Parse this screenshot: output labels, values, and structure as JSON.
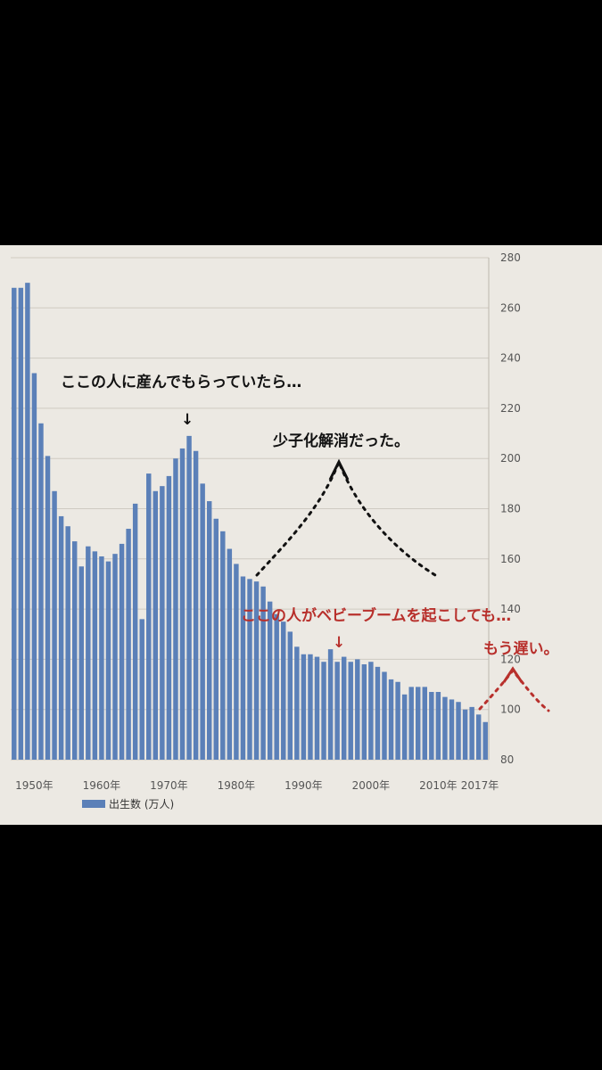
{
  "chart_data": {
    "type": "bar",
    "series": [
      {
        "name": "出生数 (万人)",
        "x": [
          1947,
          1948,
          1949,
          1950,
          1951,
          1952,
          1953,
          1954,
          1955,
          1956,
          1957,
          1958,
          1959,
          1960,
          1961,
          1962,
          1963,
          1964,
          1965,
          1966,
          1967,
          1968,
          1969,
          1970,
          1971,
          1972,
          1973,
          1974,
          1975,
          1976,
          1977,
          1978,
          1979,
          1980,
          1981,
          1982,
          1983,
          1984,
          1985,
          1986,
          1987,
          1988,
          1989,
          1990,
          1991,
          1992,
          1993,
          1994,
          1995,
          1996,
          1997,
          1998,
          1999,
          2000,
          2001,
          2002,
          2003,
          2004,
          2005,
          2006,
          2007,
          2008,
          2009,
          2010,
          2011,
          2012,
          2013,
          2014,
          2015,
          2016,
          2017
        ],
        "values": [
          268,
          268,
          270,
          234,
          214,
          201,
          187,
          177,
          173,
          167,
          157,
          165,
          163,
          161,
          159,
          162,
          166,
          172,
          182,
          136,
          194,
          187,
          189,
          193,
          200,
          204,
          209,
          203,
          190,
          183,
          176,
          171,
          164,
          158,
          153,
          152,
          151,
          149,
          143,
          138,
          135,
          131,
          125,
          122,
          122,
          121,
          119,
          124,
          119,
          121,
          119,
          120,
          118,
          119,
          117,
          115,
          112,
          111,
          106,
          109,
          109,
          109,
          107,
          107,
          105,
          104,
          103,
          100,
          101,
          98,
          95
        ]
      }
    ],
    "xticks": [
      "1950年",
      "1960年",
      "1970年",
      "1980年",
      "1990年",
      "2000年",
      "2010年",
      "2017年"
    ],
    "yticks": [
      "80",
      "100",
      "120",
      "140",
      "160",
      "180",
      "200",
      "220",
      "240",
      "260",
      "280"
    ],
    "ylim": [
      80,
      280
    ],
    "y_axis_side": "right",
    "grid": true,
    "legend": "bottom-left",
    "bar_color": "#5b80b8",
    "annotations": [
      {
        "text": "ここの人に産んでもらっていたら…",
        "color": "#111111"
      },
      {
        "text": "少子化解消だった。",
        "color": "#111111"
      },
      {
        "text": "ここの人がベビーブームを起こしても…",
        "color": "#b8302c"
      },
      {
        "text": "もう遅い。",
        "color": "#b8302c"
      }
    ],
    "arrow_glyph": "↓"
  }
}
